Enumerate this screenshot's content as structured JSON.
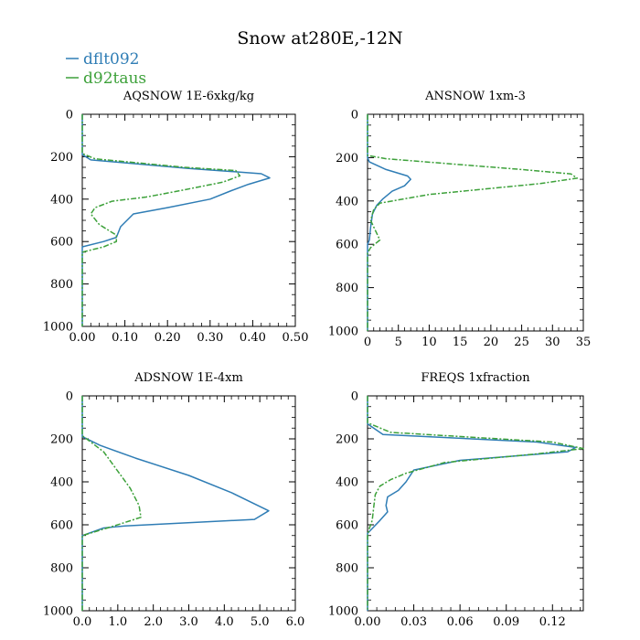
{
  "title": "Snow at280E,-12N",
  "legend": [
    {
      "name": "dflt092",
      "color": "#2f7db5",
      "dash": "solid"
    },
    {
      "name": "d92taus",
      "color": "#3da13a",
      "dash": "dashed"
    }
  ],
  "chart_data": [
    {
      "type": "line",
      "title": "AQSNOW  1E-6xkg/kg",
      "xlim": [
        0,
        0.5
      ],
      "xticks": [
        "0.00",
        "0.10",
        "0.20",
        "0.30",
        "0.40",
        "0.50"
      ],
      "ylim": [
        0,
        1000
      ],
      "yticks": [
        "0",
        "200",
        "400",
        "600",
        "800",
        "1000"
      ],
      "ylabel_inverted": true,
      "series": [
        {
          "name": "dflt092",
          "x": [
            0,
            0,
            0.02,
            0.25,
            0.42,
            0.44,
            0.39,
            0.35,
            0.3,
            0.2,
            0.12,
            0.09,
            0.08,
            0.05,
            0,
            0
          ],
          "y": [
            0,
            190,
            215,
            255,
            280,
            300,
            330,
            360,
            400,
            440,
            470,
            530,
            580,
            600,
            625,
            1000
          ]
        },
        {
          "name": "d92taus",
          "x": [
            0,
            0,
            0.03,
            0.24,
            0.36,
            0.37,
            0.33,
            0.23,
            0.15,
            0.07,
            0.03,
            0.02,
            0.04,
            0.08,
            0.08,
            0.05,
            0,
            0
          ],
          "y": [
            0,
            185,
            210,
            250,
            265,
            290,
            320,
            360,
            390,
            410,
            440,
            470,
            520,
            570,
            600,
            625,
            650,
            1000
          ]
        }
      ]
    },
    {
      "type": "line",
      "title": "ANSNOW  1xm-3",
      "xlim": [
        0,
        35
      ],
      "xticks": [
        "0",
        "5",
        "10",
        "15",
        "20",
        "25",
        "30",
        "35"
      ],
      "ylim": [
        0,
        1000
      ],
      "yticks": [
        "0",
        "200",
        "400",
        "600",
        "800",
        "1000"
      ],
      "ylabel_inverted": true,
      "series": [
        {
          "name": "dflt092",
          "x": [
            0,
            0,
            0.3,
            3,
            6.5,
            7,
            6,
            4,
            2.5,
            1.5,
            0.8,
            0.5,
            0.3,
            0,
            0
          ],
          "y": [
            0,
            200,
            220,
            255,
            285,
            300,
            330,
            355,
            390,
            420,
            460,
            520,
            580,
            600,
            1000
          ]
        },
        {
          "name": "d92taus",
          "x": [
            0,
            0,
            3,
            25,
            33,
            34,
            28,
            10,
            2,
            1,
            0.5,
            2,
            0.5,
            0,
            0
          ],
          "y": [
            0,
            190,
            205,
            255,
            275,
            295,
            320,
            370,
            410,
            440,
            490,
            580,
            615,
            640,
            1000
          ]
        }
      ]
    },
    {
      "type": "line",
      "title": "ADSNOW  1E-4xm",
      "xlim": [
        0,
        6.0
      ],
      "xticks": [
        "0.0",
        "1.0",
        "2.0",
        "3.0",
        "4.0",
        "5.0",
        "6.0"
      ],
      "ylim": [
        0,
        1000
      ],
      "yticks": [
        "0",
        "200",
        "400",
        "600",
        "800",
        "1000"
      ],
      "ylabel_inverted": true,
      "series": [
        {
          "name": "dflt092",
          "x": [
            0,
            0,
            0.5,
            1.5,
            3.0,
            4.2,
            5.25,
            4.85,
            1.2,
            0.6,
            0,
            0
          ],
          "y": [
            0,
            190,
            230,
            290,
            370,
            450,
            535,
            575,
            605,
            615,
            650,
            1000
          ]
        },
        {
          "name": "d92taus",
          "x": [
            0,
            0,
            0.6,
            1.0,
            1.35,
            1.6,
            1.65,
            0.9,
            0,
            0
          ],
          "y": [
            0,
            185,
            260,
            350,
            430,
            510,
            565,
            605,
            650,
            1000
          ]
        }
      ]
    },
    {
      "type": "line",
      "title": "FREQS  1xfraction",
      "xlim": [
        0,
        0.14
      ],
      "xticks": [
        "0.00",
        "0.03",
        "0.06",
        "0.09",
        "0.12"
      ],
      "ylim": [
        0,
        1000
      ],
      "yticks": [
        "0",
        "200",
        "400",
        "600",
        "800",
        "1000"
      ],
      "ylabel_inverted": true,
      "series": [
        {
          "name": "dflt092",
          "x": [
            0,
            0,
            0.01,
            0.11,
            0.135,
            0.13,
            0.06,
            0.03,
            0.025,
            0.02,
            0.013,
            0.012,
            0.013,
            0.008,
            0.004,
            0,
            0
          ],
          "y": [
            0,
            130,
            180,
            215,
            240,
            260,
            300,
            345,
            400,
            440,
            470,
            510,
            540,
            580,
            610,
            640,
            1000
          ]
        },
        {
          "name": "d92taus",
          "x": [
            0,
            0,
            0.015,
            0.12,
            0.14,
            0.11,
            0.05,
            0.025,
            0.015,
            0.008,
            0.005,
            0.004,
            0.003,
            0.001,
            0,
            0
          ],
          "y": [
            0,
            125,
            170,
            215,
            245,
            270,
            310,
            360,
            390,
            420,
            460,
            520,
            580,
            620,
            650,
            1000
          ]
        }
      ]
    }
  ]
}
